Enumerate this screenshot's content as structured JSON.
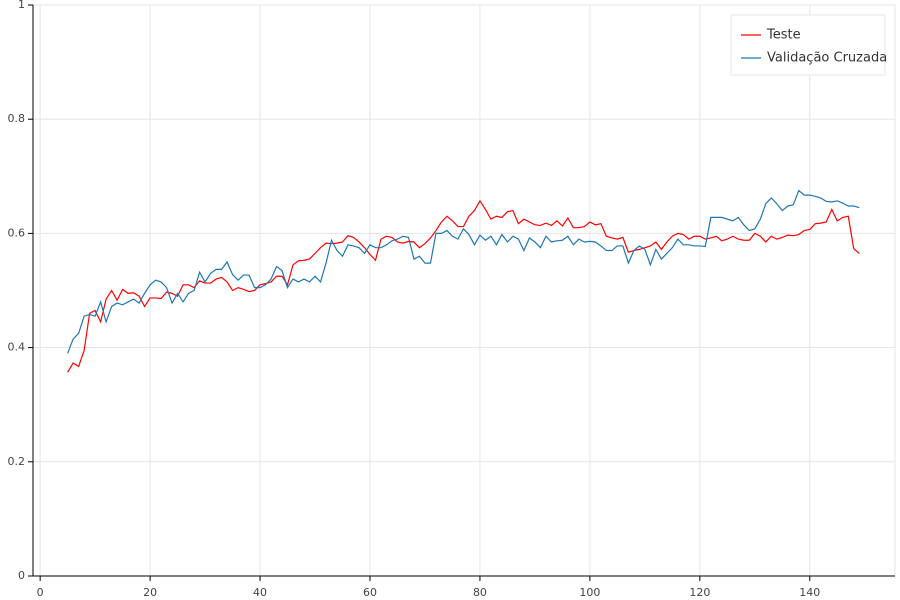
{
  "chart_data": {
    "type": "line",
    "x": [
      5,
      6,
      7,
      8,
      9,
      10,
      11,
      12,
      13,
      14,
      15,
      16,
      17,
      18,
      19,
      20,
      21,
      22,
      23,
      24,
      25,
      26,
      27,
      28,
      29,
      30,
      31,
      32,
      33,
      34,
      35,
      36,
      37,
      38,
      39,
      40,
      41,
      42,
      43,
      44,
      45,
      46,
      47,
      48,
      49,
      50,
      51,
      52,
      53,
      54,
      55,
      56,
      57,
      58,
      59,
      60,
      61,
      62,
      63,
      64,
      65,
      66,
      67,
      68,
      69,
      70,
      71,
      72,
      73,
      74,
      75,
      76,
      77,
      78,
      79,
      80,
      81,
      82,
      83,
      84,
      85,
      86,
      87,
      88,
      89,
      90,
      91,
      92,
      93,
      94,
      95,
      96,
      97,
      98,
      99,
      100,
      101,
      102,
      103,
      104,
      105,
      106,
      107,
      108,
      109,
      110,
      111,
      112,
      113,
      114,
      115,
      116,
      117,
      118,
      119,
      120,
      121,
      122,
      123,
      124,
      125,
      126,
      127,
      128,
      129,
      130,
      131,
      132,
      133,
      134,
      135,
      136,
      137,
      138,
      139,
      140,
      141,
      142,
      143,
      144,
      145,
      146,
      147,
      148,
      149
    ],
    "series": [
      {
        "name": "Teste",
        "color": "#ff0000",
        "values": [
          0.357,
          0.373,
          0.367,
          0.395,
          0.46,
          0.465,
          0.445,
          0.485,
          0.5,
          0.483,
          0.502,
          0.495,
          0.496,
          0.49,
          0.472,
          0.487,
          0.487,
          0.486,
          0.497,
          0.495,
          0.49,
          0.51,
          0.51,
          0.505,
          0.517,
          0.513,
          0.513,
          0.52,
          0.523,
          0.515,
          0.5,
          0.505,
          0.502,
          0.498,
          0.5,
          0.51,
          0.512,
          0.515,
          0.525,
          0.525,
          0.51,
          0.545,
          0.552,
          0.553,
          0.555,
          0.565,
          0.575,
          0.583,
          0.582,
          0.583,
          0.585,
          0.596,
          0.593,
          0.585,
          0.575,
          0.563,
          0.553,
          0.59,
          0.595,
          0.593,
          0.585,
          0.583,
          0.586,
          0.585,
          0.575,
          0.582,
          0.592,
          0.605,
          0.62,
          0.63,
          0.622,
          0.612,
          0.612,
          0.63,
          0.64,
          0.657,
          0.642,
          0.625,
          0.63,
          0.628,
          0.638,
          0.64,
          0.617,
          0.625,
          0.62,
          0.615,
          0.614,
          0.618,
          0.614,
          0.622,
          0.613,
          0.627,
          0.61,
          0.61,
          0.612,
          0.62,
          0.615,
          0.617,
          0.595,
          0.592,
          0.59,
          0.593,
          0.567,
          0.57,
          0.572,
          0.575,
          0.578,
          0.585,
          0.572,
          0.585,
          0.595,
          0.6,
          0.598,
          0.59,
          0.595,
          0.595,
          0.59,
          0.592,
          0.595,
          0.587,
          0.59,
          0.595,
          0.59,
          0.588,
          0.588,
          0.6,
          0.595,
          0.585,
          0.595,
          0.59,
          0.593,
          0.597,
          0.596,
          0.598,
          0.605,
          0.607,
          0.617,
          0.618,
          0.62,
          0.642,
          0.622,
          0.628,
          0.63,
          0.573,
          0.565
        ]
      },
      {
        "name": "Validação Cruzada",
        "color": "#1f77b4",
        "values": [
          0.39,
          0.415,
          0.425,
          0.455,
          0.458,
          0.455,
          0.48,
          0.445,
          0.472,
          0.478,
          0.475,
          0.48,
          0.485,
          0.478,
          0.495,
          0.51,
          0.518,
          0.515,
          0.505,
          0.478,
          0.495,
          0.48,
          0.495,
          0.5,
          0.532,
          0.515,
          0.53,
          0.537,
          0.537,
          0.55,
          0.528,
          0.518,
          0.527,
          0.527,
          0.505,
          0.505,
          0.51,
          0.52,
          0.542,
          0.535,
          0.505,
          0.52,
          0.515,
          0.52,
          0.515,
          0.525,
          0.515,
          0.548,
          0.588,
          0.57,
          0.56,
          0.58,
          0.578,
          0.575,
          0.565,
          0.58,
          0.575,
          0.575,
          0.58,
          0.587,
          0.59,
          0.595,
          0.593,
          0.555,
          0.56,
          0.548,
          0.548,
          0.6,
          0.6,
          0.605,
          0.595,
          0.59,
          0.608,
          0.598,
          0.58,
          0.597,
          0.588,
          0.595,
          0.58,
          0.598,
          0.585,
          0.595,
          0.59,
          0.57,
          0.592,
          0.585,
          0.575,
          0.595,
          0.585,
          0.587,
          0.588,
          0.595,
          0.58,
          0.59,
          0.585,
          0.586,
          0.585,
          0.578,
          0.57,
          0.57,
          0.578,
          0.578,
          0.548,
          0.57,
          0.578,
          0.572,
          0.545,
          0.572,
          0.555,
          0.565,
          0.575,
          0.59,
          0.58,
          0.58,
          0.578,
          0.578,
          0.577,
          0.628,
          0.628,
          0.628,
          0.625,
          0.622,
          0.628,
          0.615,
          0.605,
          0.608,
          0.625,
          0.652,
          0.662,
          0.652,
          0.64,
          0.648,
          0.65,
          0.675,
          0.667,
          0.667,
          0.665,
          0.662,
          0.656,
          0.655,
          0.657,
          0.653,
          0.648,
          0.648,
          0.645
        ]
      }
    ],
    "xlim": [
      -1.3,
      155.5
    ],
    "ylim": [
      0,
      1
    ],
    "xticks": [
      0,
      20,
      40,
      60,
      80,
      100,
      120,
      140
    ],
    "yticks": [
      0,
      0.2,
      0.4,
      0.6,
      0.8,
      1
    ],
    "grid": true,
    "legend": "top-right"
  }
}
